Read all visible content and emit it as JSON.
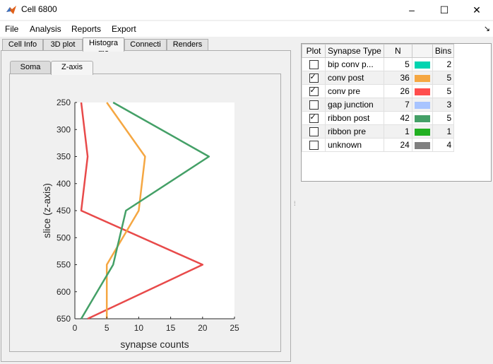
{
  "window": {
    "title": "Cell 6800",
    "minimize": "–",
    "maximize": "☐",
    "close": "✕"
  },
  "menu": {
    "items": [
      "File",
      "Analysis",
      "Reports",
      "Export"
    ],
    "pin": "↘"
  },
  "outer_tabs": [
    "Cell Info",
    "3D plot",
    "Histogra ms",
    "Connecti vity",
    "Renders"
  ],
  "inner_tabs": [
    "Soma",
    "Z-axis"
  ],
  "chart_data": {
    "type": "line",
    "xlabel": "synapse counts",
    "ylabel": "slice (z-axis)",
    "xlim": [
      0,
      25
    ],
    "ylim": [
      250,
      650
    ],
    "y_reversed": true,
    "xticks": [
      0,
      5,
      10,
      15,
      20,
      25
    ],
    "yticks": [
      250,
      300,
      350,
      400,
      450,
      500,
      550,
      600,
      650
    ],
    "series": [
      {
        "color": "#e84a4a",
        "points": [
          [
            1,
            250
          ],
          [
            2,
            350
          ],
          [
            1,
            450
          ],
          [
            20,
            550
          ],
          [
            2,
            650
          ]
        ]
      },
      {
        "color": "#f5a742",
        "points": [
          [
            5,
            250
          ],
          [
            11,
            350
          ],
          [
            10,
            450
          ],
          [
            5,
            550
          ],
          [
            5,
            650
          ]
        ]
      },
      {
        "color": "#44a067",
        "points": [
          [
            6,
            250
          ],
          [
            21,
            350
          ],
          [
            8,
            450
          ],
          [
            6,
            550
          ],
          [
            1,
            650
          ]
        ]
      }
    ]
  },
  "table": {
    "headers": [
      "Plot",
      "Synapse Type",
      "N",
      "",
      "Bins"
    ],
    "rows": [
      {
        "checked": false,
        "type": "bip conv p...",
        "n": "5",
        "color": "#00d4b0",
        "bins": "2"
      },
      {
        "checked": true,
        "type": "conv post",
        "n": "36",
        "color": "#f5a742",
        "bins": "5"
      },
      {
        "checked": true,
        "type": "conv pre",
        "n": "26",
        "color": "#ff4d4d",
        "bins": "5"
      },
      {
        "checked": false,
        "type": "gap junction",
        "n": "7",
        "color": "#a8c4ff",
        "bins": "3"
      },
      {
        "checked": true,
        "type": "ribbon post",
        "n": "42",
        "color": "#44a067",
        "bins": "5"
      },
      {
        "checked": false,
        "type": "ribbon pre",
        "n": "1",
        "color": "#22b022",
        "bins": "1"
      },
      {
        "checked": false,
        "type": "unknown",
        "n": "24",
        "color": "#808080",
        "bins": "4"
      }
    ]
  }
}
